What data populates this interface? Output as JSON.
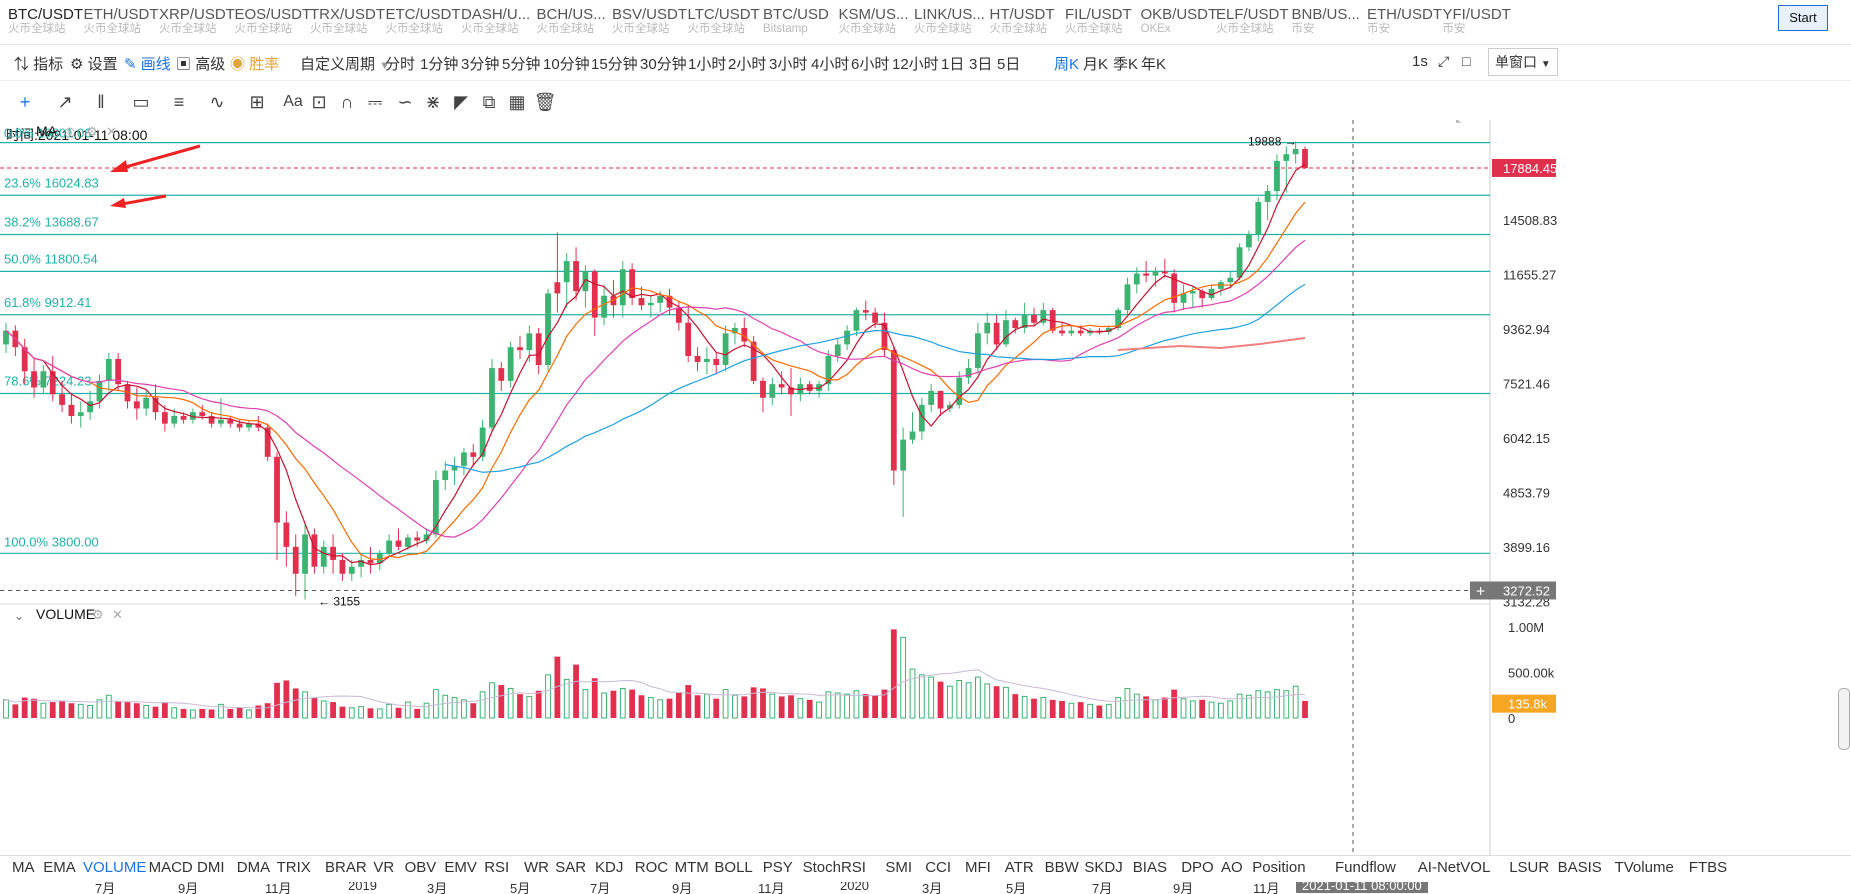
{
  "symbols": [
    {
      "pair": "BTC/USDT",
      "exchange": "火币全球站",
      "active": true
    },
    {
      "pair": "ETH/USDT",
      "exchange": "火币全球站"
    },
    {
      "pair": "XRP/USDT",
      "exchange": "火币全球站"
    },
    {
      "pair": "EOS/USDT",
      "exchange": "火币全球站"
    },
    {
      "pair": "TRX/USDT",
      "exchange": "火币全球站"
    },
    {
      "pair": "ETC/USDT",
      "exchange": "火币全球站"
    },
    {
      "pair": "DASH/U...",
      "exchange": "火币全球站"
    },
    {
      "pair": "BCH/US...",
      "exchange": "火币全球站"
    },
    {
      "pair": "BSV/USDT",
      "exchange": "火币全球站"
    },
    {
      "pair": "LTC/USDT",
      "exchange": "火币全球站"
    },
    {
      "pair": "BTC/USD",
      "exchange": "Bitstamp"
    },
    {
      "pair": "KSM/US...",
      "exchange": "火币全球站"
    },
    {
      "pair": "LINK/US...",
      "exchange": "火币全球站"
    },
    {
      "pair": "HT/USDT",
      "exchange": "火币全球站"
    },
    {
      "pair": "FIL/USDT",
      "exchange": "火币全球站"
    },
    {
      "pair": "OKB/USDT",
      "exchange": "OKEx"
    },
    {
      "pair": "ELF/USDT",
      "exchange": "火币全球站"
    },
    {
      "pair": "BNB/US...",
      "exchange": "币安"
    },
    {
      "pair": "ETH/USDT",
      "exchange": "币安"
    },
    {
      "pair": "YFI/USDT",
      "exchange": "币安"
    }
  ],
  "start_button": "Start",
  "toolbar": {
    "indicator": "指标",
    "settings": "设置",
    "draw": "画线",
    "advanced": "高级",
    "winrate": "胜率",
    "custom_period": "自定义周期",
    "periods": [
      "分时",
      "1分钟",
      "3分钟",
      "5分钟",
      "10分钟",
      "15分钟",
      "30分钟",
      "1小时",
      "2小时",
      "3小时",
      "4小时",
      "6小时",
      "12小时",
      "1日",
      "3日",
      "5日",
      "周K",
      "月K",
      "季K",
      "年K"
    ],
    "selected_period": "周K",
    "refresh": "1s",
    "window_mode": "单窗口"
  },
  "time_info": "时间:2021-01-11 08:00",
  "ma_label": "MA",
  "volume_label": "VOLUME",
  "price_scale": [
    "14508.83",
    "11655.27",
    "9362.94",
    "7521.46",
    "6042.15",
    "4853.79",
    "3899.16",
    "3132.28"
  ],
  "current_price": "17884.45",
  "crosshair_price": "3272.52",
  "volume_scale": [
    "1.00M",
    "500.00k",
    "0"
  ],
  "current_volume": "135.8k",
  "fib_levels": [
    {
      "label": "0.0% 19801.06",
      "price": 19801.06
    },
    {
      "label": "23.6% 16024.83",
      "price": 16024.83
    },
    {
      "label": "38.2% 13688.67",
      "price": 13688.67
    },
    {
      "label": "50.0% 11800.54",
      "price": 11800.54
    },
    {
      "label": "61.8% 9912.41",
      "price": 9912.41
    },
    {
      "label": "78.6% 7224.23",
      "price": 7224.23
    },
    {
      "label": "100.0% 3800.00",
      "price": 3800.0
    }
  ],
  "high_marker": "19888",
  "low_marker": "3155",
  "x_axis_labels": [
    "7月",
    "9月",
    "11月",
    "2019",
    "3月",
    "5月",
    "7月",
    "9月",
    "11月",
    "2020",
    "3月",
    "5月",
    "7月",
    "9月",
    "11月"
  ],
  "crosshair_time": "2021-01-11 08:00:00",
  "bottom_tabs": [
    "MA",
    "EMA",
    "VOLUME",
    "MACD",
    "DMI",
    "DMA",
    "TRIX",
    "BRAR",
    "VR",
    "OBV",
    "EMV",
    "RSI",
    "WR",
    "SAR",
    "KDJ",
    "ROC",
    "MTM",
    "BOLL",
    "PSY",
    "StochRSI",
    "SMI",
    "CCI",
    "MFI",
    "ATR",
    "BBW",
    "SKDJ",
    "BIAS",
    "DPO",
    "AO",
    "Position",
    "Fundflow",
    "AI-NetVOL",
    "LSUR",
    "BASIS",
    "TVolume",
    "FTBS"
  ],
  "selected_bottom_tab": "VOLUME",
  "colors": {
    "up": "#3cb371",
    "down": "#e0304e",
    "fib": "#20b2aa",
    "accent": "#1a73e8"
  },
  "chart_data": {
    "type": "candlestick",
    "interval": "weekly",
    "ylim": [
      3132.28,
      19888
    ],
    "y_scale": "log",
    "candles": [
      [
        8800,
        9600,
        8500,
        9300,
        "up",
        160
      ],
      [
        9300,
        9500,
        8400,
        8700,
        "down",
        120
      ],
      [
        8700,
        9000,
        7500,
        7900,
        "down",
        180
      ],
      [
        7900,
        8300,
        7100,
        7400,
        "down",
        170
      ],
      [
        7400,
        8100,
        7200,
        7900,
        "up",
        130
      ],
      [
        7900,
        8400,
        7000,
        7200,
        "down",
        140
      ],
      [
        7200,
        7600,
        6700,
        6900,
        "down",
        150
      ],
      [
        6900,
        7200,
        6400,
        6600,
        "down",
        130
      ],
      [
        6600,
        7000,
        6300,
        6700,
        "up",
        120
      ],
      [
        6700,
        7300,
        6500,
        7000,
        "up",
        110
      ],
      [
        7000,
        7800,
        6800,
        7600,
        "up",
        160
      ],
      [
        7600,
        8500,
        7300,
        8300,
        "up",
        200
      ],
      [
        8300,
        8500,
        7300,
        7500,
        "down",
        150
      ],
      [
        7500,
        7600,
        6800,
        7000,
        "down",
        140
      ],
      [
        7000,
        7400,
        6500,
        6800,
        "down",
        130
      ],
      [
        6800,
        7300,
        6600,
        7100,
        "up",
        110
      ],
      [
        7100,
        7500,
        6500,
        6700,
        "down",
        100
      ],
      [
        6700,
        6900,
        6200,
        6400,
        "down",
        140
      ],
      [
        6400,
        6800,
        6300,
        6600,
        "up",
        90
      ],
      [
        6600,
        6700,
        6400,
        6500,
        "down",
        80
      ],
      [
        6500,
        6800,
        6400,
        6700,
        "up",
        70
      ],
      [
        6700,
        6900,
        6500,
        6600,
        "down",
        80
      ],
      [
        6600,
        6700,
        6300,
        6400,
        "down",
        75
      ],
      [
        6400,
        7100,
        6300,
        6500,
        "up",
        120
      ],
      [
        6500,
        6600,
        6300,
        6400,
        "down",
        80
      ],
      [
        6400,
        6500,
        6200,
        6300,
        "down",
        90
      ],
      [
        6300,
        6500,
        6200,
        6400,
        "up",
        70
      ],
      [
        6400,
        6600,
        6200,
        6300,
        "down",
        110
      ],
      [
        6300,
        6400,
        5500,
        5600,
        "down",
        130
      ],
      [
        5600,
        5700,
        3700,
        4300,
        "down",
        310
      ],
      [
        4300,
        4500,
        3600,
        3900,
        "down",
        330
      ],
      [
        3900,
        4100,
        3200,
        3500,
        "down",
        260
      ],
      [
        3500,
        4300,
        3155,
        4100,
        "up",
        230
      ],
      [
        4100,
        4200,
        3500,
        3600,
        "down",
        180
      ],
      [
        3600,
        4000,
        3500,
        3900,
        "up",
        150
      ],
      [
        3900,
        4100,
        3500,
        3700,
        "down",
        140
      ],
      [
        3700,
        3800,
        3400,
        3500,
        "down",
        100
      ],
      [
        3500,
        3700,
        3400,
        3600,
        "up",
        90
      ],
      [
        3600,
        3800,
        3450,
        3700,
        "up",
        100
      ],
      [
        3700,
        3900,
        3500,
        3650,
        "down",
        85
      ],
      [
        3650,
        3850,
        3550,
        3800,
        "up",
        80
      ],
      [
        3800,
        4100,
        3750,
        4000,
        "up",
        120
      ],
      [
        4000,
        4200,
        3850,
        3900,
        "down",
        90
      ],
      [
        3900,
        4100,
        3850,
        4050,
        "up",
        140
      ],
      [
        4050,
        4150,
        3900,
        4000,
        "down",
        80
      ],
      [
        4000,
        4200,
        3950,
        4100,
        "up",
        130
      ],
      [
        4100,
        5300,
        4050,
        5100,
        "up",
        250
      ],
      [
        5100,
        5500,
        4900,
        5300,
        "up",
        200
      ],
      [
        5300,
        5600,
        5000,
        5400,
        "up",
        180
      ],
      [
        5400,
        5800,
        5200,
        5700,
        "up",
        160
      ],
      [
        5700,
        5900,
        5400,
        5600,
        "down",
        130
      ],
      [
        5600,
        6500,
        5500,
        6300,
        "up",
        230
      ],
      [
        6300,
        8300,
        6200,
        8000,
        "up",
        310
      ],
      [
        8000,
        8200,
        7300,
        7600,
        "down",
        290
      ],
      [
        7600,
        8900,
        7400,
        8700,
        "up",
        260
      ],
      [
        8700,
        9100,
        8300,
        8600,
        "down",
        210
      ],
      [
        8600,
        9500,
        8200,
        9200,
        "up",
        190
      ],
      [
        9200,
        9400,
        7800,
        8100,
        "down",
        240
      ],
      [
        8100,
        11000,
        7900,
        10800,
        "up",
        380
      ],
      [
        10800,
        13800,
        10000,
        11300,
        "down",
        540
      ],
      [
        11300,
        12700,
        10200,
        12300,
        "up",
        340
      ],
      [
        12300,
        13000,
        10500,
        10900,
        "down",
        470
      ],
      [
        10900,
        12100,
        10200,
        11800,
        "up",
        250
      ],
      [
        11800,
        11900,
        9100,
        9800,
        "down",
        350
      ],
      [
        9800,
        11200,
        9500,
        10700,
        "up",
        220
      ],
      [
        10700,
        11400,
        9800,
        10300,
        "down",
        240
      ],
      [
        10300,
        12300,
        9800,
        11900,
        "up",
        260
      ],
      [
        11900,
        12200,
        10300,
        10600,
        "down",
        250
      ],
      [
        10600,
        11100,
        10100,
        10300,
        "down",
        200
      ],
      [
        10300,
        10700,
        9800,
        10400,
        "up",
        180
      ],
      [
        10400,
        10900,
        10000,
        10700,
        "up",
        160
      ],
      [
        10700,
        11000,
        9900,
        10200,
        "down",
        170
      ],
      [
        10200,
        10500,
        9300,
        9600,
        "down",
        220
      ],
      [
        9600,
        10300,
        8200,
        8400,
        "down",
        290
      ],
      [
        8400,
        8700,
        7900,
        8200,
        "down",
        200
      ],
      [
        8200,
        8700,
        7800,
        8300,
        "up",
        210
      ],
      [
        8300,
        8500,
        7800,
        8100,
        "down",
        170
      ],
      [
        8100,
        9500,
        7900,
        9200,
        "up",
        250
      ],
      [
        9200,
        9600,
        8800,
        9400,
        "up",
        200
      ],
      [
        9400,
        9800,
        8700,
        8900,
        "down",
        190
      ],
      [
        8900,
        9100,
        7500,
        7600,
        "down",
        270
      ],
      [
        7600,
        7700,
        6700,
        7100,
        "down",
        260
      ],
      [
        7100,
        7700,
        6900,
        7500,
        "up",
        210
      ],
      [
        7500,
        7900,
        7200,
        7400,
        "down",
        190
      ],
      [
        7400,
        8000,
        6600,
        7200,
        "down",
        200
      ],
      [
        7200,
        7700,
        7000,
        7500,
        "up",
        170
      ],
      [
        7500,
        7600,
        7200,
        7300,
        "down",
        160
      ],
      [
        7300,
        7600,
        7100,
        7500,
        "up",
        140
      ],
      [
        7500,
        8600,
        7300,
        8400,
        "up",
        230
      ],
      [
        8400,
        9000,
        8200,
        8800,
        "up",
        220
      ],
      [
        8800,
        9500,
        8600,
        9300,
        "up",
        210
      ],
      [
        9300,
        10200,
        9100,
        10100,
        "up",
        240
      ],
      [
        10100,
        10500,
        9700,
        10000,
        "down",
        210
      ],
      [
        10000,
        10200,
        9400,
        9600,
        "down",
        200
      ],
      [
        9600,
        10000,
        8400,
        8600,
        "down",
        250
      ],
      [
        8600,
        8700,
        5000,
        5300,
        "down",
        780
      ],
      [
        5300,
        6300,
        4400,
        6000,
        "up",
        710
      ],
      [
        6000,
        6700,
        5900,
        6200,
        "up",
        430
      ],
      [
        6200,
        7100,
        6000,
        6900,
        "up",
        380
      ],
      [
        6900,
        7500,
        6700,
        7300,
        "up",
        360
      ],
      [
        7300,
        7300,
        6600,
        6800,
        "down",
        320
      ],
      [
        6800,
        7000,
        6700,
        6900,
        "up",
        280
      ],
      [
        6900,
        7900,
        6800,
        7700,
        "up",
        330
      ],
      [
        7700,
        8300,
        7500,
        8000,
        "up",
        310
      ],
      [
        8000,
        9600,
        7800,
        9200,
        "up",
        360
      ],
      [
        9200,
        10000,
        8800,
        9600,
        "up",
        300
      ],
      [
        9600,
        9900,
        8600,
        8800,
        "down",
        280
      ],
      [
        8800,
        10100,
        8700,
        9700,
        "up",
        270
      ],
      [
        9700,
        9800,
        9200,
        9400,
        "down",
        210
      ],
      [
        9400,
        10400,
        9200,
        9900,
        "up",
        190
      ],
      [
        9900,
        10200,
        9500,
        9600,
        "down",
        170
      ],
      [
        9600,
        10400,
        9500,
        10100,
        "up",
        180
      ],
      [
        10100,
        10200,
        9200,
        9300,
        "down",
        160
      ],
      [
        9300,
        9600,
        9100,
        9200,
        "down",
        150
      ],
      [
        9200,
        9500,
        9100,
        9300,
        "up",
        130
      ],
      [
        9300,
        9500,
        9100,
        9200,
        "down",
        140
      ],
      [
        9200,
        9400,
        9100,
        9300,
        "up",
        120
      ],
      [
        9300,
        9400,
        9150,
        9250,
        "down",
        110
      ],
      [
        9250,
        9500,
        9150,
        9400,
        "up",
        120
      ],
      [
        9400,
        10200,
        9300,
        10100,
        "up",
        180
      ],
      [
        10100,
        11500,
        9900,
        11200,
        "up",
        260
      ],
      [
        11200,
        12000,
        10800,
        11700,
        "up",
        210
      ],
      [
        11700,
        12300,
        11300,
        11600,
        "down",
        190
      ],
      [
        11600,
        12000,
        11100,
        11800,
        "up",
        160
      ],
      [
        11800,
        12400,
        11500,
        11700,
        "down",
        180
      ],
      [
        11700,
        11900,
        10000,
        10400,
        "down",
        250
      ],
      [
        10400,
        11200,
        10100,
        10800,
        "up",
        170
      ],
      [
        10800,
        11100,
        10200,
        10900,
        "up",
        150
      ],
      [
        10900,
        11000,
        10200,
        10600,
        "down",
        160
      ],
      [
        10600,
        11200,
        10500,
        11000,
        "up",
        140
      ],
      [
        11000,
        11400,
        10700,
        11300,
        "up",
        130
      ],
      [
        11300,
        11800,
        11100,
        11500,
        "up",
        150
      ],
      [
        11500,
        13200,
        11400,
        13000,
        "up",
        210
      ],
      [
        13000,
        13900,
        12800,
        13700,
        "up",
        200
      ],
      [
        13700,
        15900,
        13300,
        15600,
        "up",
        240
      ],
      [
        15600,
        16700,
        14500,
        16300,
        "up",
        230
      ],
      [
        16300,
        18900,
        15700,
        18400,
        "up",
        250
      ],
      [
        18400,
        19500,
        16200,
        18900,
        "up",
        240
      ],
      [
        18900,
        19888,
        18200,
        19300,
        "up",
        280
      ],
      [
        19300,
        19500,
        17800,
        17884,
        "down",
        150
      ]
    ]
  }
}
